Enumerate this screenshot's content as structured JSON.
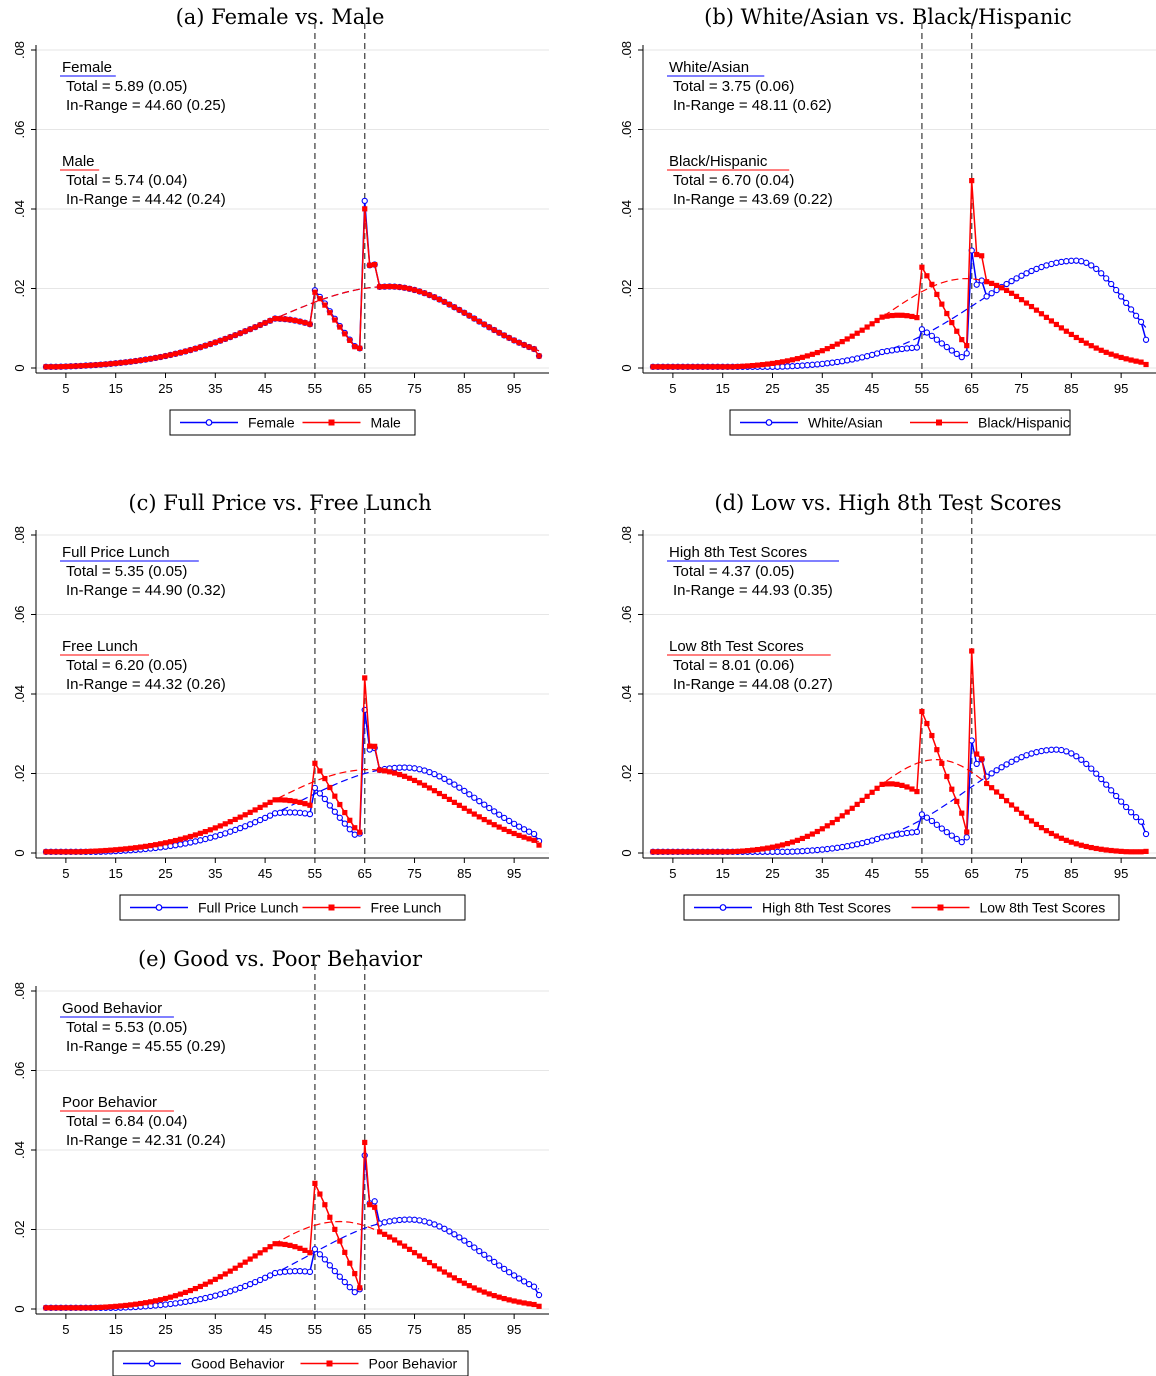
{
  "colors": {
    "blue": "#0000ff",
    "red": "#ff0000",
    "grid": "#e6e6e6",
    "cutoff": "#555555"
  },
  "chart_data": [
    {
      "type": "line",
      "title": "(a) Female vs. Male",
      "ylim": [
        0,
        0.08
      ],
      "yticks": [
        0,
        0.02,
        0.04,
        0.06,
        0.08
      ],
      "ytick_labels": [
        "0",
        ".02",
        ".04",
        ".06",
        ".08"
      ],
      "xlim": [
        0,
        100
      ],
      "xticks": [
        5,
        15,
        25,
        35,
        45,
        55,
        65,
        75,
        85,
        95
      ],
      "cutoffs": [
        55,
        65
      ],
      "legend_position": "bottom",
      "annotations": [
        {
          "label": "Female",
          "total": "Total = 5.89 (0.05)",
          "inrange": "In-Range = 44.60 (0.25)",
          "color": "blue"
        },
        {
          "label": "Male",
          "total": "Total = 5.74 (0.04)",
          "inrange": "In-Range = 44.42 (0.24)",
          "color": "red"
        }
      ],
      "series": [
        {
          "name": "Female",
          "color": "blue",
          "marker": "circle",
          "shape": {
            "base": "similar",
            "peak": 0.0205,
            "peak_x": 70,
            "sd_left": 23,
            "sd_right": 17,
            "k55": 1.18,
            "k65": 2.1
          }
        },
        {
          "name": "Male",
          "color": "red",
          "marker": "square",
          "shape": {
            "base": "similar",
            "peak": 0.0205,
            "peak_x": 70,
            "sd_left": 23,
            "sd_right": 17,
            "k55": 1.15,
            "k65": 2.0
          }
        }
      ]
    },
    {
      "type": "line",
      "title": "(b) White/Asian vs. Black/Hispanic",
      "ylim": [
        0,
        0.08
      ],
      "yticks": [
        0,
        0.02,
        0.04,
        0.06,
        0.08
      ],
      "ytick_labels": [
        "0",
        ".02",
        ".04",
        ".06",
        ".08"
      ],
      "xlim": [
        0,
        100
      ],
      "xticks": [
        5,
        15,
        25,
        35,
        45,
        55,
        65,
        75,
        85,
        95
      ],
      "cutoffs": [
        55,
        65
      ],
      "legend_position": "bottom",
      "annotations": [
        {
          "label": "White/Asian",
          "total": "Total = 3.75 (0.06)",
          "inrange": "In-Range = 48.11 (0.62)",
          "color": "blue"
        },
        {
          "label": "Black/Hispanic",
          "total": "Total = 6.70 (0.04)",
          "inrange": "In-Range = 43.69 (0.22)",
          "color": "red"
        }
      ],
      "series": [
        {
          "name": "White/Asian",
          "color": "blue",
          "marker": "circle",
          "shape": {
            "peak": 0.027,
            "peak_x": 86,
            "sd_left": 20,
            "sd_right": 10,
            "k55": 1.2,
            "k65": 1.9
          }
        },
        {
          "name": "Black/Hispanic",
          "color": "red",
          "marker": "square",
          "shape": {
            "peak": 0.0225,
            "peak_x": 64,
            "sd_left": 16,
            "sd_right": 15,
            "k55": 1.32,
            "k65": 2.1
          }
        }
      ]
    },
    {
      "type": "line",
      "title": "(c) Full Price vs. Free Lunch",
      "ylim": [
        0,
        0.08
      ],
      "yticks": [
        0,
        0.02,
        0.04,
        0.06,
        0.08
      ],
      "ytick_labels": [
        "0",
        ".02",
        ".04",
        ".06",
        ".08"
      ],
      "xlim": [
        0,
        100
      ],
      "xticks": [
        5,
        15,
        25,
        35,
        45,
        55,
        65,
        75,
        85,
        95
      ],
      "cutoffs": [
        55,
        65
      ],
      "legend_position": "bottom",
      "annotations": [
        {
          "label": "Full Price Lunch",
          "total": "Total = 5.35 (0.05)",
          "inrange": "In-Range = 44.90 (0.32)",
          "color": "blue"
        },
        {
          "label": "Free Lunch",
          "total": "Total = 6.20 (0.05)",
          "inrange": "In-Range = 44.32 (0.26)",
          "color": "red"
        }
      ],
      "series": [
        {
          "name": "Full Price Lunch",
          "color": "blue",
          "marker": "circle",
          "shape": {
            "peak": 0.0215,
            "peak_x": 73,
            "sd_left": 21,
            "sd_right": 15,
            "k55": 1.1,
            "k65": 1.8
          }
        },
        {
          "name": "Free Lunch",
          "color": "red",
          "marker": "square",
          "shape": {
            "peak": 0.021,
            "peak_x": 66,
            "sd_left": 20,
            "sd_right": 17,
            "k55": 1.25,
            "k65": 2.1
          }
        }
      ]
    },
    {
      "type": "line",
      "title": "(d) Low vs. High 8th Test Scores",
      "ylim": [
        0,
        0.08
      ],
      "yticks": [
        0,
        0.02,
        0.04,
        0.06,
        0.08
      ],
      "ytick_labels": [
        "0",
        ".02",
        ".04",
        ".06",
        ".08"
      ],
      "xlim": [
        0,
        100
      ],
      "xticks": [
        5,
        15,
        25,
        35,
        45,
        55,
        65,
        75,
        85,
        95
      ],
      "cutoffs": [
        55,
        65
      ],
      "legend_position": "bottom",
      "annotations": [
        {
          "label": "High 8th Test Scores",
          "total": "Total = 4.37 (0.05)",
          "inrange": "In-Range = 44.93 (0.35)",
          "color": "blue"
        },
        {
          "label": "Low 8th Test Scores",
          "total": "Total = 8.01 (0.06)",
          "inrange": "In-Range = 44.08 (0.27)",
          "color": "red"
        }
      ],
      "series": [
        {
          "name": "High 8th Test Scores",
          "color": "blue",
          "marker": "circle",
          "shape": {
            "peak": 0.026,
            "peak_x": 82,
            "sd_left": 18,
            "sd_right": 11,
            "k55": 1.15,
            "k65": 1.7
          }
        },
        {
          "name": "Low 8th Test Scores",
          "color": "red",
          "marker": "square",
          "shape": {
            "peak": 0.0235,
            "peak_x": 58,
            "sd_left": 14,
            "sd_right": 13,
            "k55": 1.55,
            "k65": 2.5
          }
        }
      ]
    },
    {
      "type": "line",
      "title": "(e) Good vs. Poor Behavior",
      "ylim": [
        0,
        0.08
      ],
      "yticks": [
        0,
        0.02,
        0.04,
        0.06,
        0.08
      ],
      "ytick_labels": [
        "0",
        ".02",
        ".04",
        ".06",
        ".08"
      ],
      "xlim": [
        0,
        100
      ],
      "xticks": [
        5,
        15,
        25,
        35,
        45,
        55,
        65,
        75,
        85,
        95
      ],
      "cutoffs": [
        55,
        65
      ],
      "legend_position": "bottom",
      "annotations": [
        {
          "label": "Good Behavior",
          "total": "Total = 5.53 (0.05)",
          "inrange": "In-Range = 45.55 (0.29)",
          "color": "blue"
        },
        {
          "label": "Poor Behavior",
          "total": "Total = 6.84 (0.04)",
          "inrange": "In-Range = 42.31 (0.24)",
          "color": "red"
        }
      ],
      "series": [
        {
          "name": "Good Behavior",
          "color": "blue",
          "marker": "circle",
          "shape": {
            "peak": 0.0225,
            "peak_x": 74,
            "sd_left": 20,
            "sd_right": 15,
            "k55": 1.05,
            "k65": 1.9
          }
        },
        {
          "name": "Poor Behavior",
          "color": "red",
          "marker": "square",
          "shape": {
            "peak": 0.022,
            "peak_x": 60,
            "sd_left": 17,
            "sd_right": 16,
            "k55": 1.5,
            "k65": 2.0
          }
        }
      ]
    }
  ]
}
